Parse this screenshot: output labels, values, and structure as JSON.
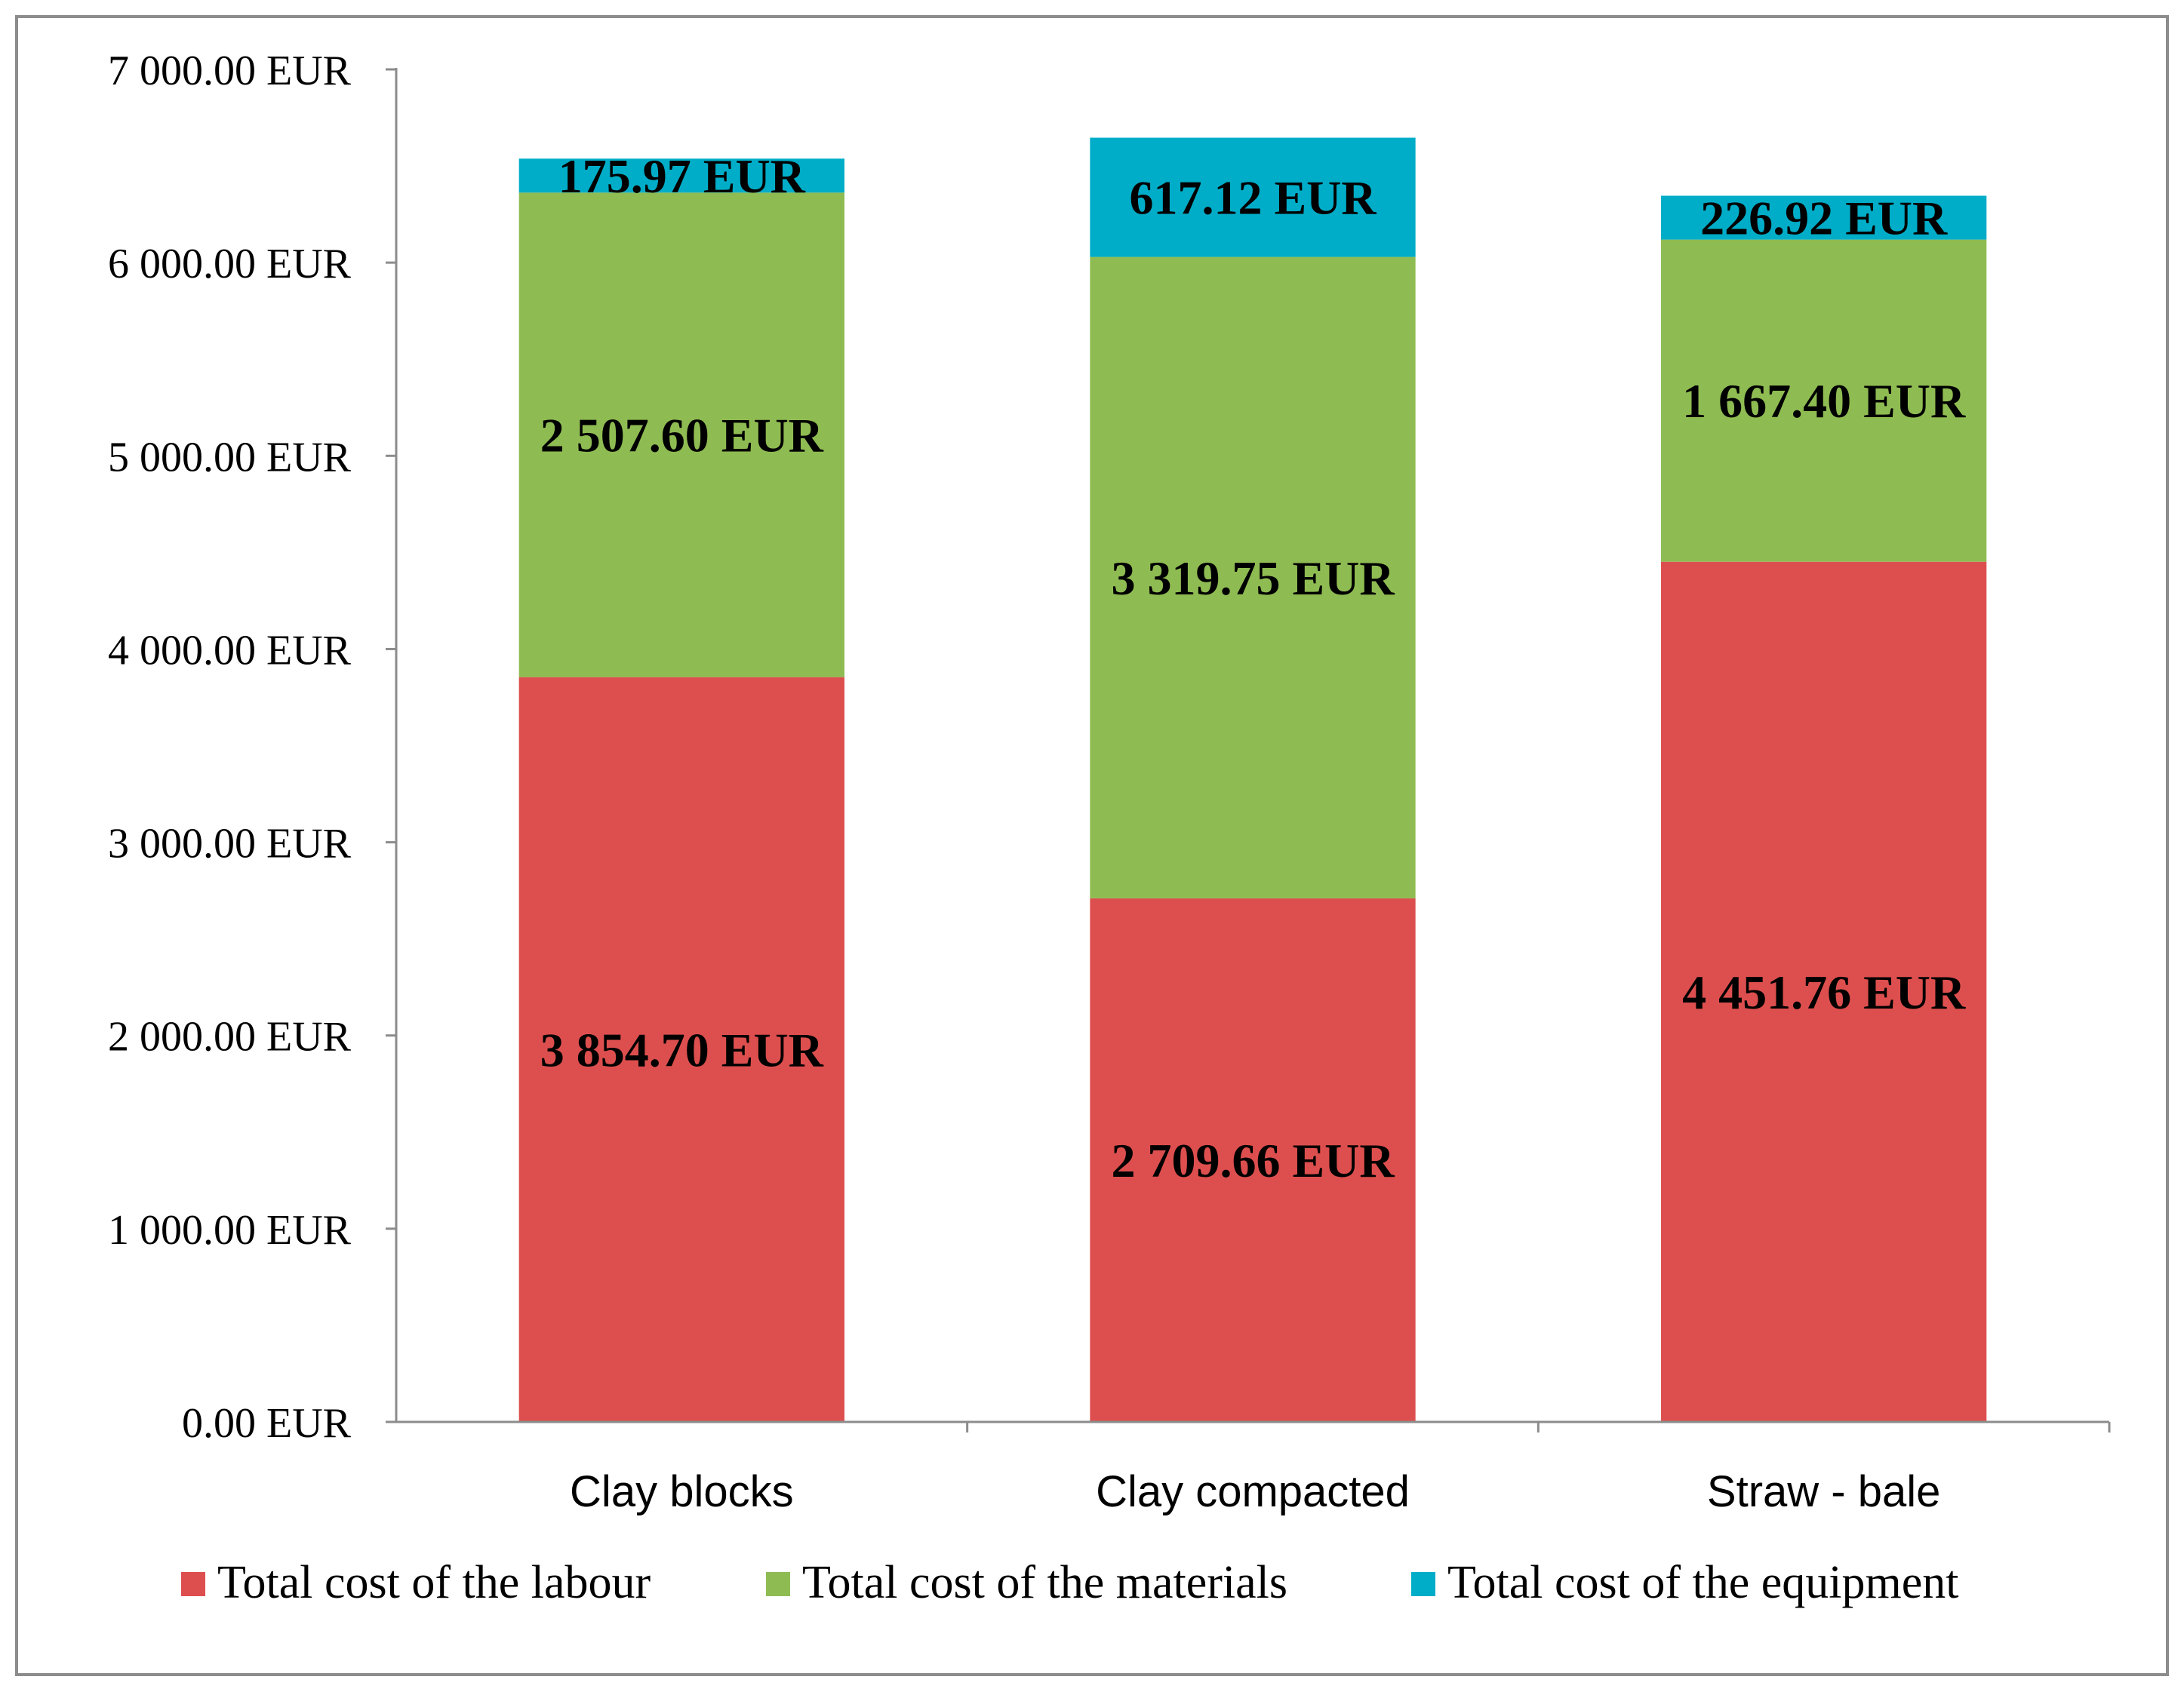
{
  "chart_data": {
    "type": "bar",
    "stacked": true,
    "title": "",
    "xlabel": "",
    "ylabel": "",
    "ylim": [
      0,
      7000
    ],
    "y_ticks": [
      0,
      1000,
      2000,
      3000,
      4000,
      5000,
      6000,
      7000
    ],
    "y_tick_labels": [
      "0.00 EUR",
      "1 000.00 EUR",
      "2 000.00 EUR",
      "3 000.00 EUR",
      "4 000.00 EUR",
      "5 000.00 EUR",
      "6 000.00 EUR",
      "7 000.00 EUR"
    ],
    "categories": [
      "Clay blocks",
      "Clay compacted",
      "Straw - bale"
    ],
    "series": [
      {
        "name": "Total cost of the labour",
        "color": "#dd4f4e",
        "values": [
          3854.7,
          2709.66,
          4451.76
        ],
        "labels": [
          "3 854.70 EUR",
          "2 709.66 EUR",
          "4 451.76 EUR"
        ]
      },
      {
        "name": "Total cost of the materials",
        "color": "#8fbc52",
        "values": [
          2507.6,
          3319.75,
          1667.4
        ],
        "labels": [
          "2 507.60 EUR",
          "3 319.75 EUR",
          "1 667.40 EUR"
        ]
      },
      {
        "name": "Total cost of the equipment",
        "color": "#00adc8",
        "values": [
          175.97,
          617.12,
          226.92
        ],
        "labels": [
          "175.97 EUR",
          "617.12 EUR",
          "226.92 EUR"
        ]
      }
    ],
    "legend_position": "bottom",
    "grid": false
  }
}
